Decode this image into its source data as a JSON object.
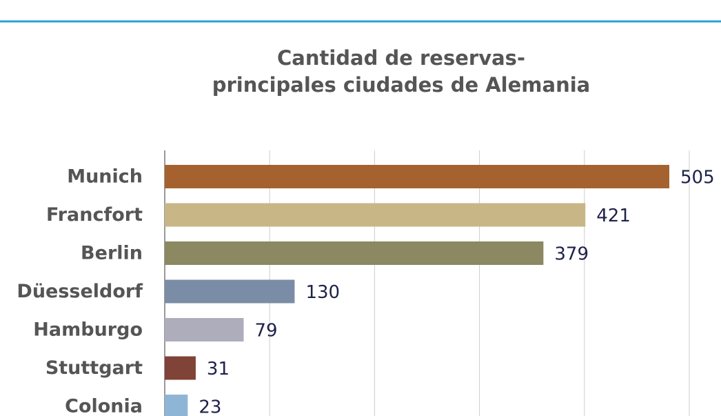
{
  "chart_data": {
    "type": "hbar",
    "title": [
      "Cantidad de reservas-",
      "principales ciudades de Alemania"
    ],
    "categories": [
      "Munich",
      "Francfort",
      "Berlin",
      "Düesseldorf",
      "Hamburgo",
      "Stuttgart",
      "Colonia"
    ],
    "values": [
      505,
      421,
      379,
      130,
      79,
      31,
      23
    ],
    "colors": [
      "#a5622f",
      "#c8b687",
      "#8b8862",
      "#7b8ca6",
      "#adadbb",
      "#7f4337",
      "#8eb5d6"
    ],
    "xlim": [
      0,
      525
    ],
    "xticks": [
      0,
      105,
      210,
      315,
      420,
      525
    ],
    "grid": true
  }
}
